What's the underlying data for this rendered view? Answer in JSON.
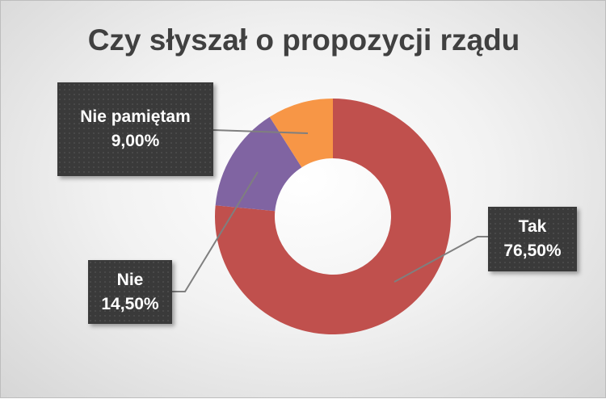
{
  "chart_data": {
    "type": "pie",
    "subtype": "donut",
    "title": "Czy słyszał o propozycji rządu",
    "categories": [
      "Tak",
      "Nie",
      "Nie pamiętam"
    ],
    "values": [
      76.5,
      14.5,
      9.0
    ],
    "data_labels": [
      "76,50%",
      "14,50%",
      "9,00%"
    ],
    "colors": [
      "#c0504d",
      "#8064a2",
      "#f79646"
    ],
    "legend": "none"
  }
}
